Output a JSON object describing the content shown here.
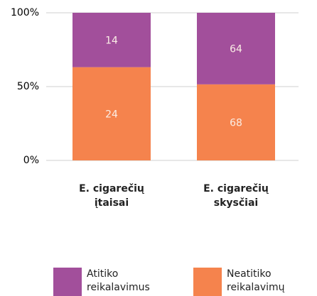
{
  "chart_data": {
    "type": "bar",
    "stacked": "percent",
    "categories": [
      "E. cigarečių įtaisai",
      "E. cigarečių skysčiai"
    ],
    "series": [
      {
        "name": "Atitiko reikalavimus",
        "color": "#a24f9b",
        "values": [
          14,
          64
        ]
      },
      {
        "name": "Neatitiko reikalavimų",
        "color": "#f5834d",
        "values": [
          24,
          68
        ]
      }
    ],
    "ylim": [
      0,
      100
    ],
    "yticks": [
      {
        "value": 0,
        "label": "0%"
      },
      {
        "value": 50,
        "label": "50%"
      },
      {
        "value": 100,
        "label": "100%"
      }
    ],
    "grid": true
  }
}
